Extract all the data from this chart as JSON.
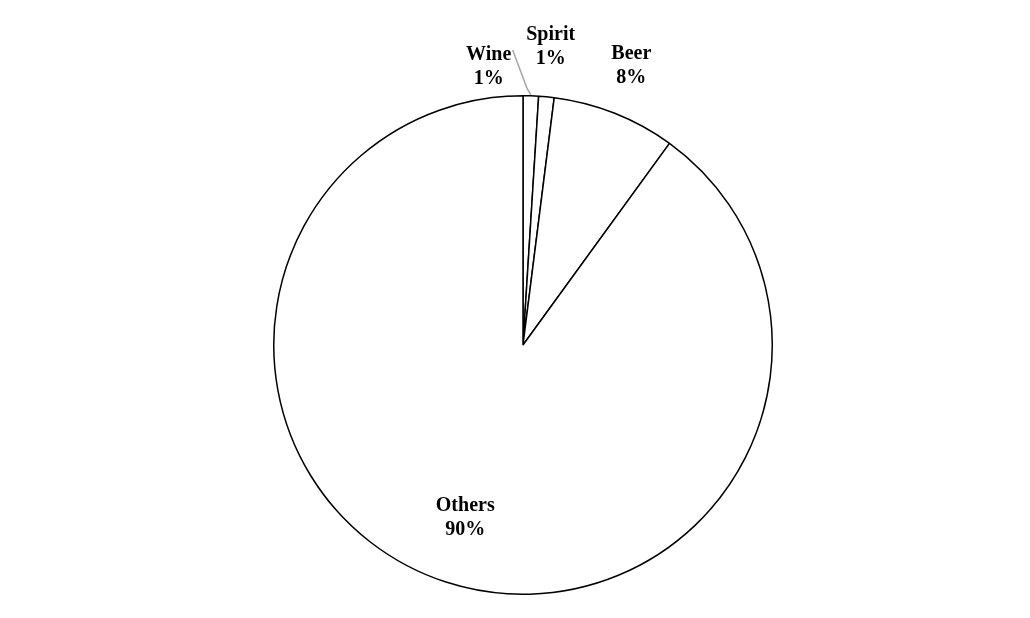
{
  "chart_data": {
    "type": "pie",
    "categories": [
      "Wine",
      "Spirit",
      "Beer",
      "Others"
    ],
    "values": [
      1,
      1,
      8,
      90
    ],
    "colors": [
      "#ffffff",
      "#ffffff",
      "#ffffff",
      "#ffffff"
    ],
    "value_labels": [
      "1%",
      "1%",
      "8%",
      "90%"
    ],
    "legend": false
  }
}
